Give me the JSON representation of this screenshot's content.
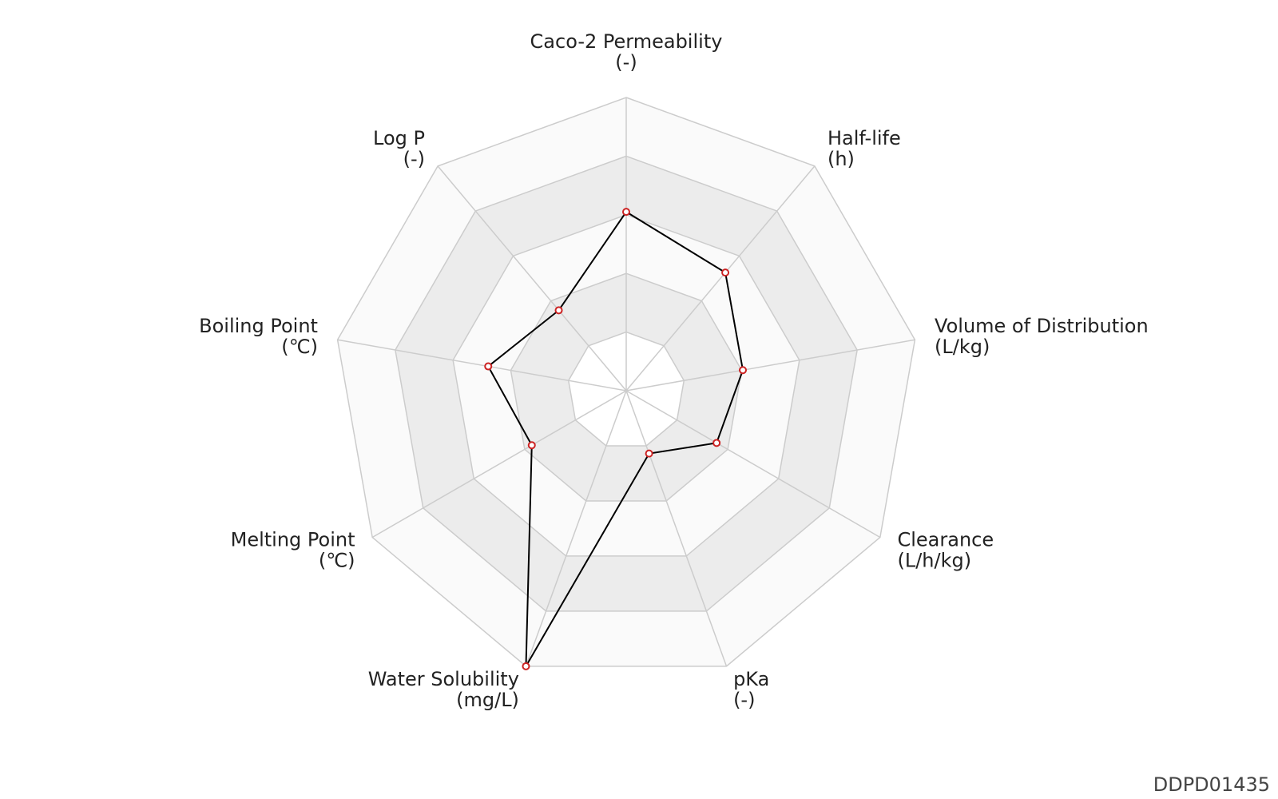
{
  "chart_data": {
    "type": "radar",
    "categories": [
      "Caco-2 Permeability",
      "Half-life",
      "Volume of Distribution",
      "Clearance",
      "pKa",
      "Water Solubility",
      "Melting Point",
      "Boiling Point",
      "Log P"
    ],
    "units": [
      "(-)",
      "(h)",
      "(L/kg)",
      "(L/h/kg)",
      "(-)",
      "(mg/L)",
      "(℃)",
      "(℃)",
      "(-)"
    ],
    "values": [
      3.05,
      2.63,
      2.02,
      1.78,
      1.14,
      5,
      1.86,
      2.39,
      1.79
    ],
    "rlim": [
      0,
      5
    ],
    "rticks": [
      1,
      2,
      3,
      4,
      5
    ],
    "color": "#000000",
    "marker_color": "#cc2222",
    "grid_color": "#cccccc",
    "band_colors": [
      "#ffffff",
      "#ececec",
      "#fafafa",
      "#ececec",
      "#fafafa"
    ],
    "footer": "DDPD01435"
  }
}
